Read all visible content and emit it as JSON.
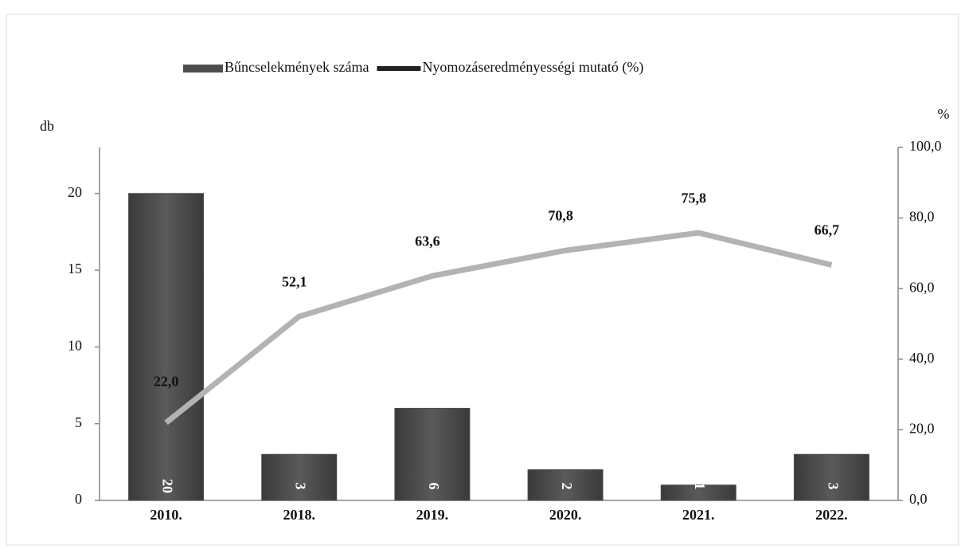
{
  "chart_data": {
    "type": "bar",
    "categories": [
      "2010.",
      "2018.",
      "2019.",
      "2020.",
      "2021.",
      "2022."
    ],
    "series": [
      {
        "name": "Bűncselekmények száma",
        "type": "bar",
        "color": "#4d4d4d",
        "values": [
          20,
          3,
          6,
          2,
          1,
          3
        ]
      },
      {
        "name": "Nyomozáseredményességi mutató (%)",
        "type": "line",
        "axis": "y2",
        "color": "#b3b3b3",
        "values": [
          22.0,
          52.1,
          63.6,
          70.8,
          75.8,
          66.7
        ],
        "value_labels": [
          "22,0",
          "52,1",
          "63,6",
          "70,8",
          "75,8",
          "66,7"
        ]
      }
    ],
    "ylabel": "db",
    "y2label": "%",
    "ylim": [
      0,
      23
    ],
    "yticks": [
      0,
      5,
      10,
      15,
      20
    ],
    "y2lim": [
      0,
      100
    ],
    "y2ticks": [
      {
        "value": 0,
        "label": "0,0"
      },
      {
        "value": 20,
        "label": "20,0"
      },
      {
        "value": 40,
        "label": "40,0"
      },
      {
        "value": 60,
        "label": "60,0"
      },
      {
        "value": 80,
        "label": "80,0"
      },
      {
        "value": 100,
        "label": "100,0"
      }
    ],
    "legend": "top"
  }
}
